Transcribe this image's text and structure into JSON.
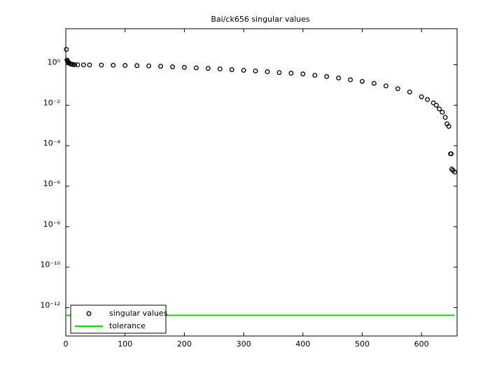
{
  "chart_data": {
    "type": "scatter",
    "title": "Bai/ck656 singular values",
    "xlim": [
      0,
      660
    ],
    "xticks": [
      0,
      100,
      200,
      300,
      400,
      500,
      600
    ],
    "ylim": [
      4e-14,
      60
    ],
    "log_y": true,
    "yticks": [
      {
        "value": 1e-12,
        "label": "10⁻¹²"
      },
      {
        "value": 1e-10,
        "label": "10⁻¹⁰"
      },
      {
        "value": 1e-08,
        "label": "10⁻⁸"
      },
      {
        "value": 1e-06,
        "label": "10⁻⁶"
      },
      {
        "value": 0.0001,
        "label": "10⁻⁴"
      },
      {
        "value": 0.01,
        "label": "10⁻²"
      },
      {
        "value": 1,
        "label": "10⁰"
      }
    ],
    "legend": "lower left",
    "series": [
      {
        "name": "singular values",
        "color": "#000000",
        "style": "marker",
        "x": [
          1,
          2,
          3,
          4,
          5,
          6,
          8,
          10,
          12,
          15,
          20,
          30,
          40,
          60,
          80,
          100,
          120,
          140,
          160,
          180,
          200,
          220,
          240,
          260,
          280,
          300,
          320,
          340,
          360,
          380,
          400,
          420,
          440,
          460,
          480,
          500,
          520,
          540,
          560,
          580,
          600,
          610,
          620,
          625,
          630,
          635,
          640,
          643,
          646,
          649,
          650,
          651,
          653,
          656
        ],
        "values": [
          5.7,
          1.7,
          1.5,
          1.35,
          1.25,
          1.18,
          1.1,
          1.05,
          1.02,
          1.0,
          0.99,
          0.98,
          0.97,
          0.96,
          0.94,
          0.92,
          0.9,
          0.87,
          0.84,
          0.79,
          0.74,
          0.7,
          0.66,
          0.62,
          0.57,
          0.53,
          0.49,
          0.45,
          0.41,
          0.38,
          0.35,
          0.3,
          0.26,
          0.22,
          0.18,
          0.15,
          0.12,
          0.09,
          0.065,
          0.045,
          0.026,
          0.019,
          0.013,
          0.01,
          0.0065,
          0.0045,
          0.0025,
          0.0012,
          0.0009,
          4e-05,
          4e-05,
          7e-06,
          6e-06,
          5e-06
        ]
      },
      {
        "name": "tolerance",
        "color": "#00dd00",
        "style": "line",
        "x": [
          1,
          656
        ],
        "values": [
          4.2e-13,
          4.2e-13
        ]
      }
    ]
  }
}
